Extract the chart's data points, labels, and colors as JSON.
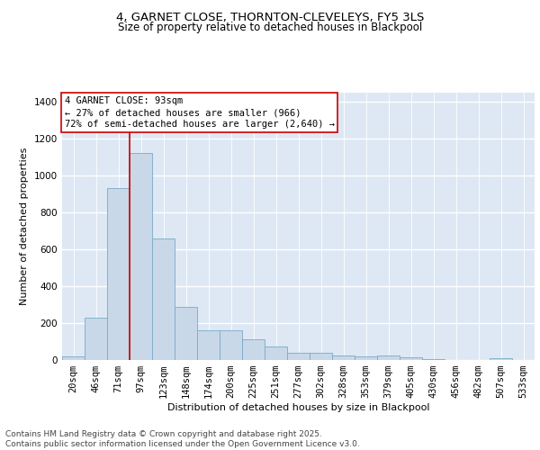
{
  "title_line1": "4, GARNET CLOSE, THORNTON-CLEVELEYS, FY5 3LS",
  "title_line2": "Size of property relative to detached houses in Blackpool",
  "xlabel": "Distribution of detached houses by size in Blackpool",
  "ylabel": "Number of detached properties",
  "categories": [
    "20sqm",
    "46sqm",
    "71sqm",
    "97sqm",
    "123sqm",
    "148sqm",
    "174sqm",
    "200sqm",
    "225sqm",
    "251sqm",
    "277sqm",
    "302sqm",
    "328sqm",
    "353sqm",
    "379sqm",
    "405sqm",
    "430sqm",
    "456sqm",
    "482sqm",
    "507sqm",
    "533sqm"
  ],
  "values": [
    20,
    230,
    930,
    1120,
    660,
    290,
    160,
    160,
    110,
    75,
    40,
    40,
    25,
    20,
    25,
    15,
    5,
    0,
    0,
    8,
    0
  ],
  "bar_color": "#c8d8e8",
  "bar_edge_color": "#7aaac8",
  "background_color": "#dde8f4",
  "grid_color": "#ffffff",
  "red_line_x": 2.5,
  "annotation_text": "4 GARNET CLOSE: 93sqm\n← 27% of detached houses are smaller (966)\n72% of semi-detached houses are larger (2,640) →",
  "annotation_box_color": "#ffffff",
  "annotation_box_edge": "#cc0000",
  "footer_text": "Contains HM Land Registry data © Crown copyright and database right 2025.\nContains public sector information licensed under the Open Government Licence v3.0.",
  "ylim": [
    0,
    1450
  ],
  "yticks": [
    0,
    200,
    400,
    600,
    800,
    1000,
    1200,
    1400
  ],
  "title_fontsize": 9.5,
  "subtitle_fontsize": 8.5,
  "axis_label_fontsize": 8,
  "tick_fontsize": 7.5,
  "annotation_fontsize": 7.5,
  "footer_fontsize": 6.5
}
